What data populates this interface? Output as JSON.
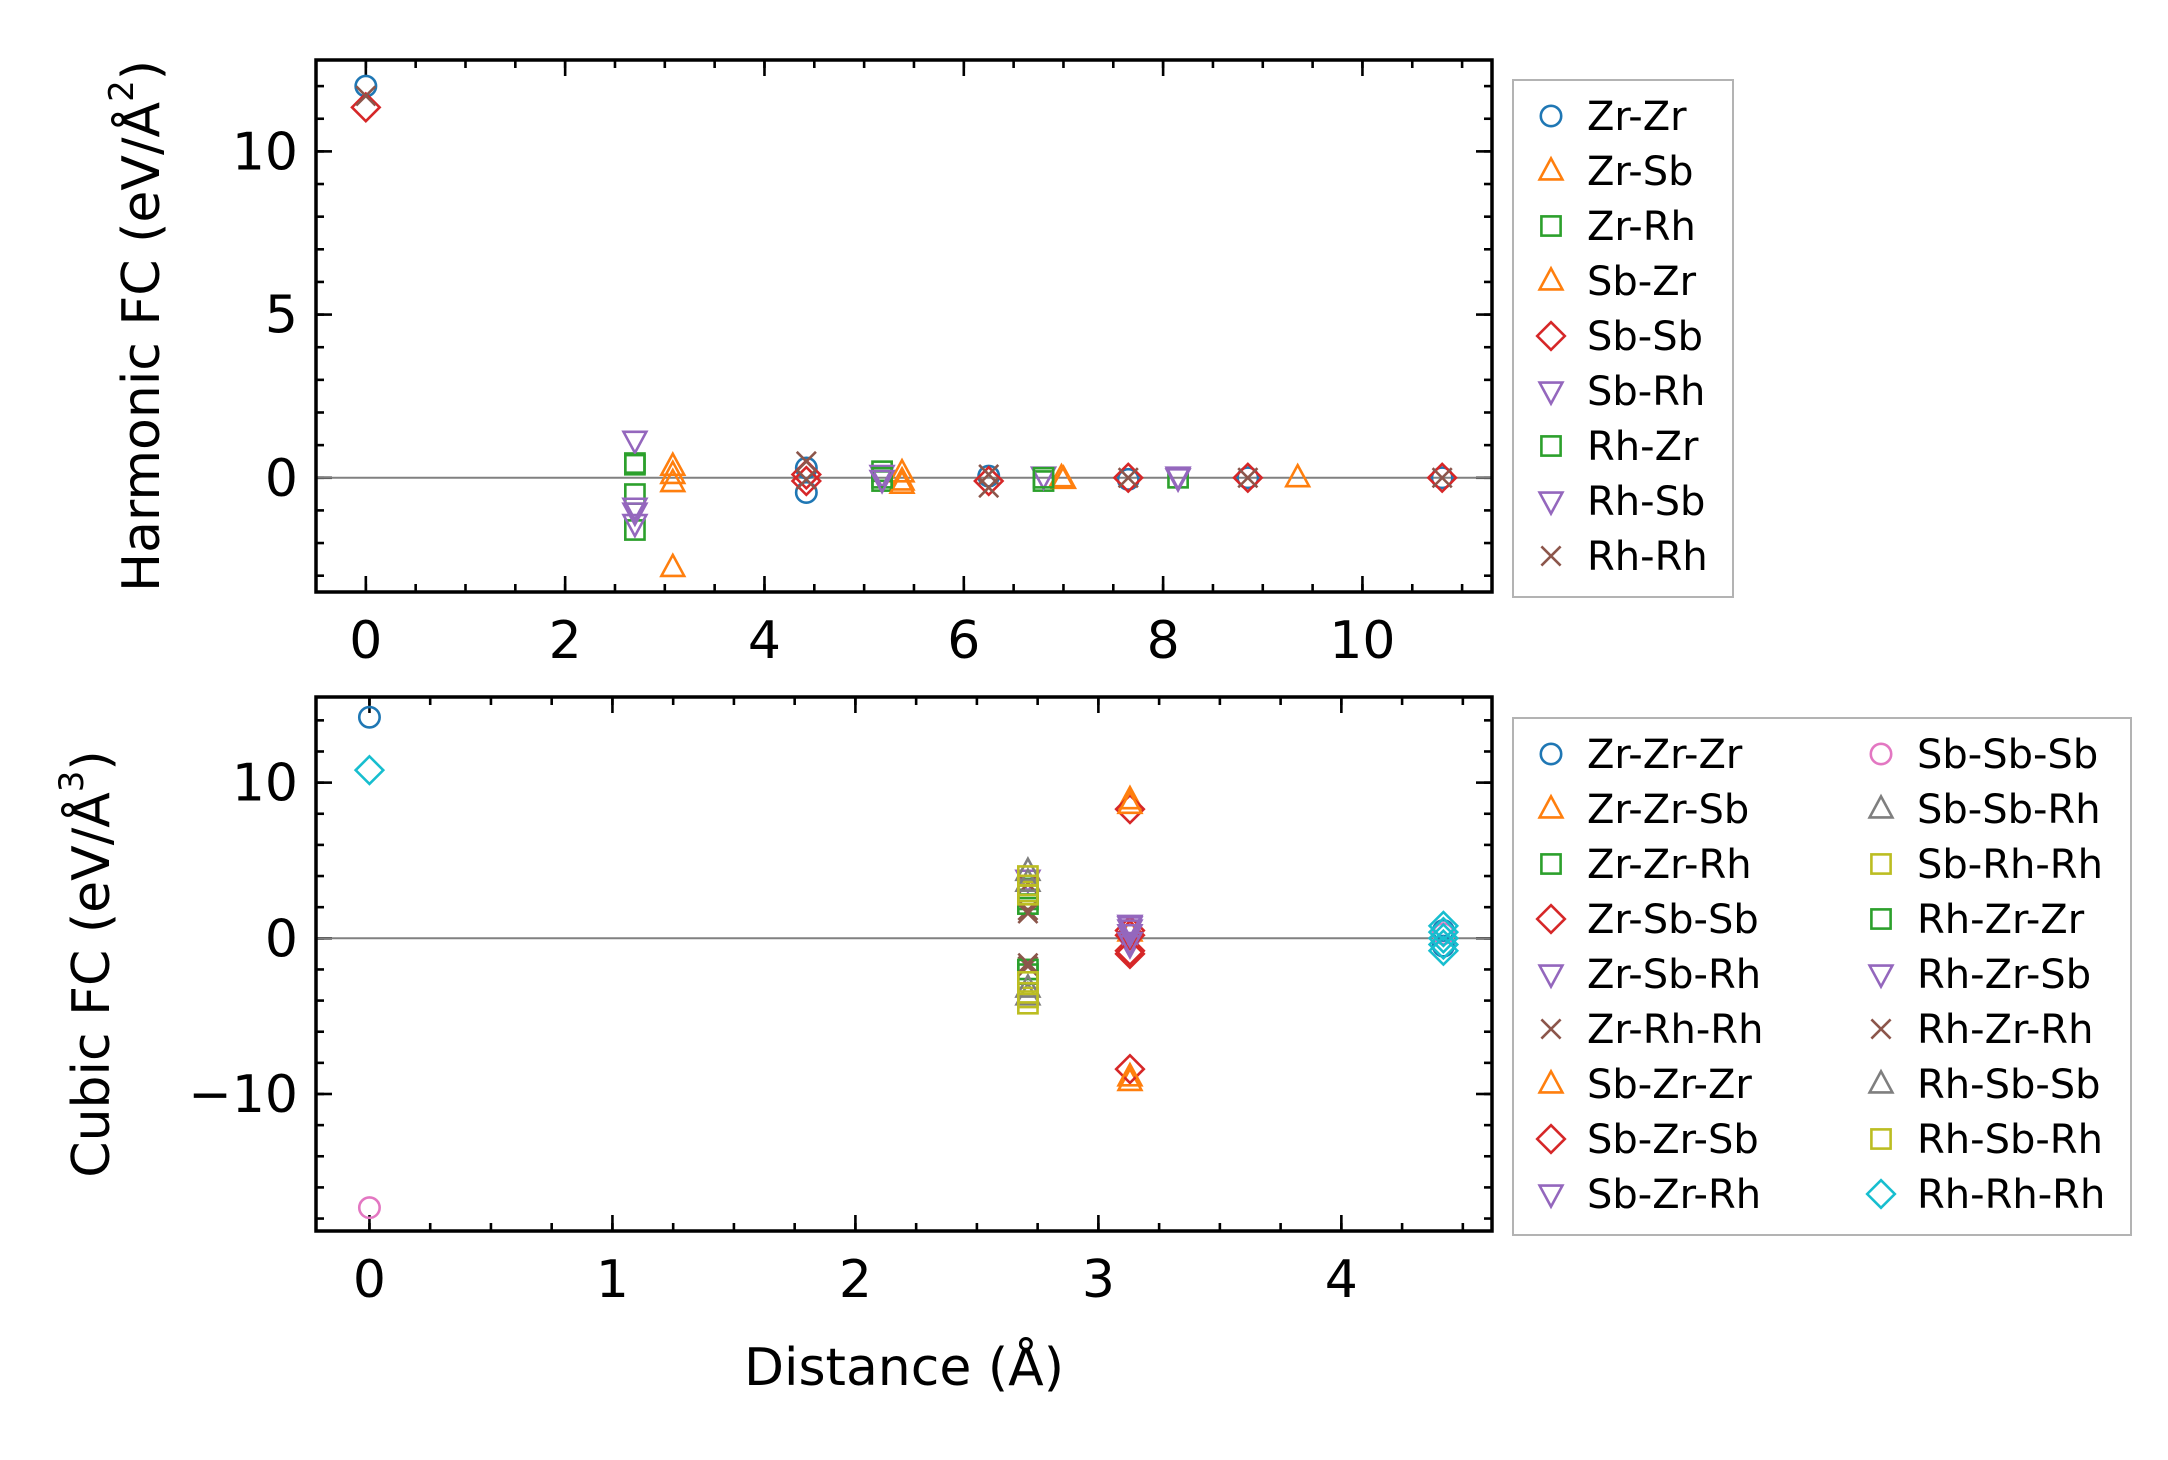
{
  "colors": {
    "blue": "#1f77b4",
    "orange": "#ff7f0e",
    "green": "#2ca02c",
    "red": "#d62728",
    "purple": "#9467bd",
    "brown": "#8c564b",
    "pink": "#e377c2",
    "gray": "#7f7f7f",
    "olive": "#bcbd22",
    "cyan": "#17becf",
    "zero_line": "#808080",
    "axis": "#000000"
  },
  "chart_data": [
    {
      "type": "scatter",
      "title": "",
      "xlabel": "",
      "ylabel": "Harmonic FC (eV/Å",
      "ylabel_sup": "2",
      "ylabel_close": ")",
      "xlim": [
        -0.5,
        11.3
      ],
      "ylim": [
        -3.5,
        12.8
      ],
      "xticks": [
        0,
        2,
        4,
        6,
        8,
        10
      ],
      "xtick_labels": [
        "0",
        "2",
        "4",
        "6",
        "8",
        "10"
      ],
      "yticks": [
        0,
        5,
        10
      ],
      "ytick_labels": [
        "0",
        "5",
        "10"
      ],
      "legend_position": "right",
      "legend_columns": 1,
      "series": [
        {
          "name": "Zr-Zr",
          "marker": "circle",
          "color": "#1f77b4",
          "points": [
            [
              0,
              12.0
            ],
            [
              4.42,
              -0.45
            ],
            [
              4.42,
              0.3
            ],
            [
              6.25,
              0.05
            ],
            [
              7.65,
              -0.05
            ],
            [
              8.85,
              0.0
            ],
            [
              10.8,
              0.0
            ]
          ]
        },
        {
          "name": "Zr-Sb",
          "marker": "triangle-up",
          "color": "#ff7f0e",
          "points": [
            [
              3.08,
              0.35
            ],
            [
              3.08,
              -0.15
            ],
            [
              5.38,
              -0.1
            ],
            [
              5.38,
              0.15
            ],
            [
              6.98,
              0.0
            ],
            [
              9.35,
              0.0
            ]
          ]
        },
        {
          "name": "Zr-Rh",
          "marker": "square",
          "color": "#2ca02c",
          "points": [
            [
              2.7,
              0.45
            ],
            [
              2.7,
              -0.5
            ],
            [
              2.7,
              -1.6
            ],
            [
              5.18,
              0.2
            ],
            [
              5.18,
              -0.1
            ],
            [
              6.8,
              -0.1
            ],
            [
              8.15,
              0.0
            ]
          ]
        },
        {
          "name": "Sb-Zr",
          "marker": "triangle-up",
          "color": "#ff7f0e",
          "points": [
            [
              3.08,
              0.1
            ],
            [
              3.08,
              -2.75
            ],
            [
              5.38,
              -0.2
            ],
            [
              7.0,
              -0.05
            ]
          ]
        },
        {
          "name": "Sb-Sb",
          "marker": "diamond",
          "color": "#d62728",
          "points": [
            [
              0,
              11.35
            ],
            [
              4.42,
              0.1
            ],
            [
              4.42,
              -0.1
            ],
            [
              6.25,
              -0.1
            ],
            [
              7.65,
              0.0
            ],
            [
              8.85,
              0.0
            ],
            [
              10.8,
              0.0
            ]
          ]
        },
        {
          "name": "Sb-Rh",
          "marker": "triangle-down",
          "color": "#9467bd",
          "points": [
            [
              2.7,
              1.15
            ],
            [
              2.7,
              -1.05
            ],
            [
              2.7,
              -1.4
            ],
            [
              5.18,
              0.1
            ],
            [
              6.8,
              0.05
            ],
            [
              8.15,
              0.0
            ]
          ]
        },
        {
          "name": "Rh-Zr",
          "marker": "square",
          "color": "#2ca02c",
          "points": [
            [
              2.7,
              0.4
            ],
            [
              5.18,
              0.0
            ],
            [
              6.8,
              0.0
            ]
          ]
        },
        {
          "name": "Rh-Sb",
          "marker": "triangle-down",
          "color": "#9467bd",
          "points": [
            [
              2.7,
              -0.9
            ],
            [
              5.18,
              -0.05
            ],
            [
              8.15,
              0.05
            ]
          ]
        },
        {
          "name": "Rh-Rh",
          "marker": "x",
          "color": "#8c564b",
          "points": [
            [
              0,
              11.7
            ],
            [
              4.42,
              0.5
            ],
            [
              4.42,
              -0.05
            ],
            [
              6.25,
              0.1
            ],
            [
              6.25,
              -0.3
            ],
            [
              7.65,
              0.0
            ],
            [
              8.85,
              0.0
            ],
            [
              10.8,
              0.0
            ]
          ]
        }
      ]
    },
    {
      "type": "scatter",
      "title": "",
      "xlabel": "Distance (Å)",
      "ylabel": "Cubic FC (eV/Å",
      "ylabel_sup": "3",
      "ylabel_close": ")",
      "xlim": [
        -0.22,
        4.62
      ],
      "ylim": [
        -18.8,
        15.5
      ],
      "xticks": [
        0,
        1,
        2,
        3,
        4
      ],
      "xtick_labels": [
        "0",
        "1",
        "2",
        "3",
        "4"
      ],
      "yticks": [
        -10,
        0,
        10
      ],
      "ytick_labels": [
        "−10",
        "0",
        "10"
      ],
      "legend_position": "right",
      "legend_columns": 2,
      "series": [
        {
          "name": "Zr-Zr-Zr",
          "marker": "circle",
          "color": "#1f77b4",
          "points": [
            [
              0,
              14.2
            ],
            [
              4.42,
              0.5
            ],
            [
              4.42,
              -0.5
            ]
          ]
        },
        {
          "name": "Zr-Zr-Sb",
          "marker": "triangle-up",
          "color": "#ff7f0e",
          "points": [
            [
              3.13,
              8.9
            ],
            [
              3.13,
              -9.2
            ],
            [
              3.13,
              0.4
            ]
          ]
        },
        {
          "name": "Zr-Zr-Rh",
          "marker": "square",
          "color": "#2ca02c",
          "points": [
            [
              2.71,
              2.5
            ],
            [
              2.71,
              -2.3
            ],
            [
              2.71,
              3.2
            ]
          ]
        },
        {
          "name": "Zr-Sb-Sb",
          "marker": "diamond",
          "color": "#d62728",
          "points": [
            [
              3.13,
              8.3
            ],
            [
              3.13,
              -8.4
            ],
            [
              3.13,
              0.5
            ],
            [
              3.13,
              -0.8
            ]
          ]
        },
        {
          "name": "Zr-Sb-Rh",
          "marker": "triangle-down",
          "color": "#9467bd",
          "points": [
            [
              3.13,
              0.8
            ],
            [
              3.13,
              -0.4
            ],
            [
              2.71,
              3.8
            ]
          ]
        },
        {
          "name": "Zr-Rh-Rh",
          "marker": "x",
          "color": "#8c564b",
          "points": [
            [
              2.71,
              1.8
            ],
            [
              2.71,
              -1.8
            ],
            [
              2.71,
              3.5
            ]
          ]
        },
        {
          "name": "Sb-Zr-Zr",
          "marker": "triangle-up",
          "color": "#ff7f0e",
          "points": [
            [
              3.13,
              8.6
            ],
            [
              3.13,
              -8.9
            ]
          ]
        },
        {
          "name": "Sb-Zr-Sb",
          "marker": "diamond",
          "color": "#d62728",
          "points": [
            [
              3.13,
              0.2
            ],
            [
              3.13,
              -1.0
            ]
          ]
        },
        {
          "name": "Sb-Zr-Rh",
          "marker": "triangle-down",
          "color": "#9467bd",
          "points": [
            [
              3.13,
              0.6
            ],
            [
              3.13,
              -0.2
            ]
          ]
        },
        {
          "name": "Sb-Sb-Sb",
          "marker": "circle",
          "color": "#e377c2",
          "points": [
            [
              0,
              -17.3
            ],
            [
              4.42,
              0.3
            ]
          ]
        },
        {
          "name": "Sb-Sb-Rh",
          "marker": "triangle-up",
          "color": "#7f7f7f",
          "points": [
            [
              2.71,
              4.3
            ],
            [
              2.71,
              -3.7
            ]
          ]
        },
        {
          "name": "Sb-Rh-Rh",
          "marker": "square",
          "color": "#bcbd22",
          "points": [
            [
              2.71,
              4.0
            ],
            [
              2.71,
              -3.8
            ],
            [
              2.71,
              -4.2
            ],
            [
              2.71,
              3.0
            ]
          ]
        },
        {
          "name": "Rh-Zr-Zr",
          "marker": "square",
          "color": "#2ca02c",
          "points": [
            [
              2.71,
              -2.0
            ],
            [
              2.71,
              2.2
            ]
          ]
        },
        {
          "name": "Rh-Zr-Sb",
          "marker": "triangle-down",
          "color": "#9467bd",
          "points": [
            [
              3.13,
              0.3
            ],
            [
              3.13,
              0.9
            ]
          ]
        },
        {
          "name": "Rh-Zr-Rh",
          "marker": "x",
          "color": "#8c564b",
          "points": [
            [
              2.71,
              -1.6
            ],
            [
              2.71,
              1.6
            ]
          ]
        },
        {
          "name": "Rh-Sb-Sb",
          "marker": "triangle-up",
          "color": "#7f7f7f",
          "points": [
            [
              2.71,
              -3.2
            ],
            [
              2.71,
              3.6
            ]
          ]
        },
        {
          "name": "Rh-Sb-Rh",
          "marker": "square",
          "color": "#bcbd22",
          "points": [
            [
              2.71,
              -3.5
            ],
            [
              2.71,
              -2.8
            ],
            [
              2.71,
              2.8
            ],
            [
              2.71,
              3.4
            ]
          ]
        },
        {
          "name": "Rh-Rh-Rh",
          "marker": "diamond",
          "color": "#17becf",
          "points": [
            [
              0,
              10.8
            ],
            [
              4.42,
              0.8
            ],
            [
              4.42,
              0.4
            ],
            [
              4.42,
              0.0
            ],
            [
              4.42,
              -0.4
            ],
            [
              4.42,
              -0.8
            ]
          ]
        }
      ]
    }
  ]
}
